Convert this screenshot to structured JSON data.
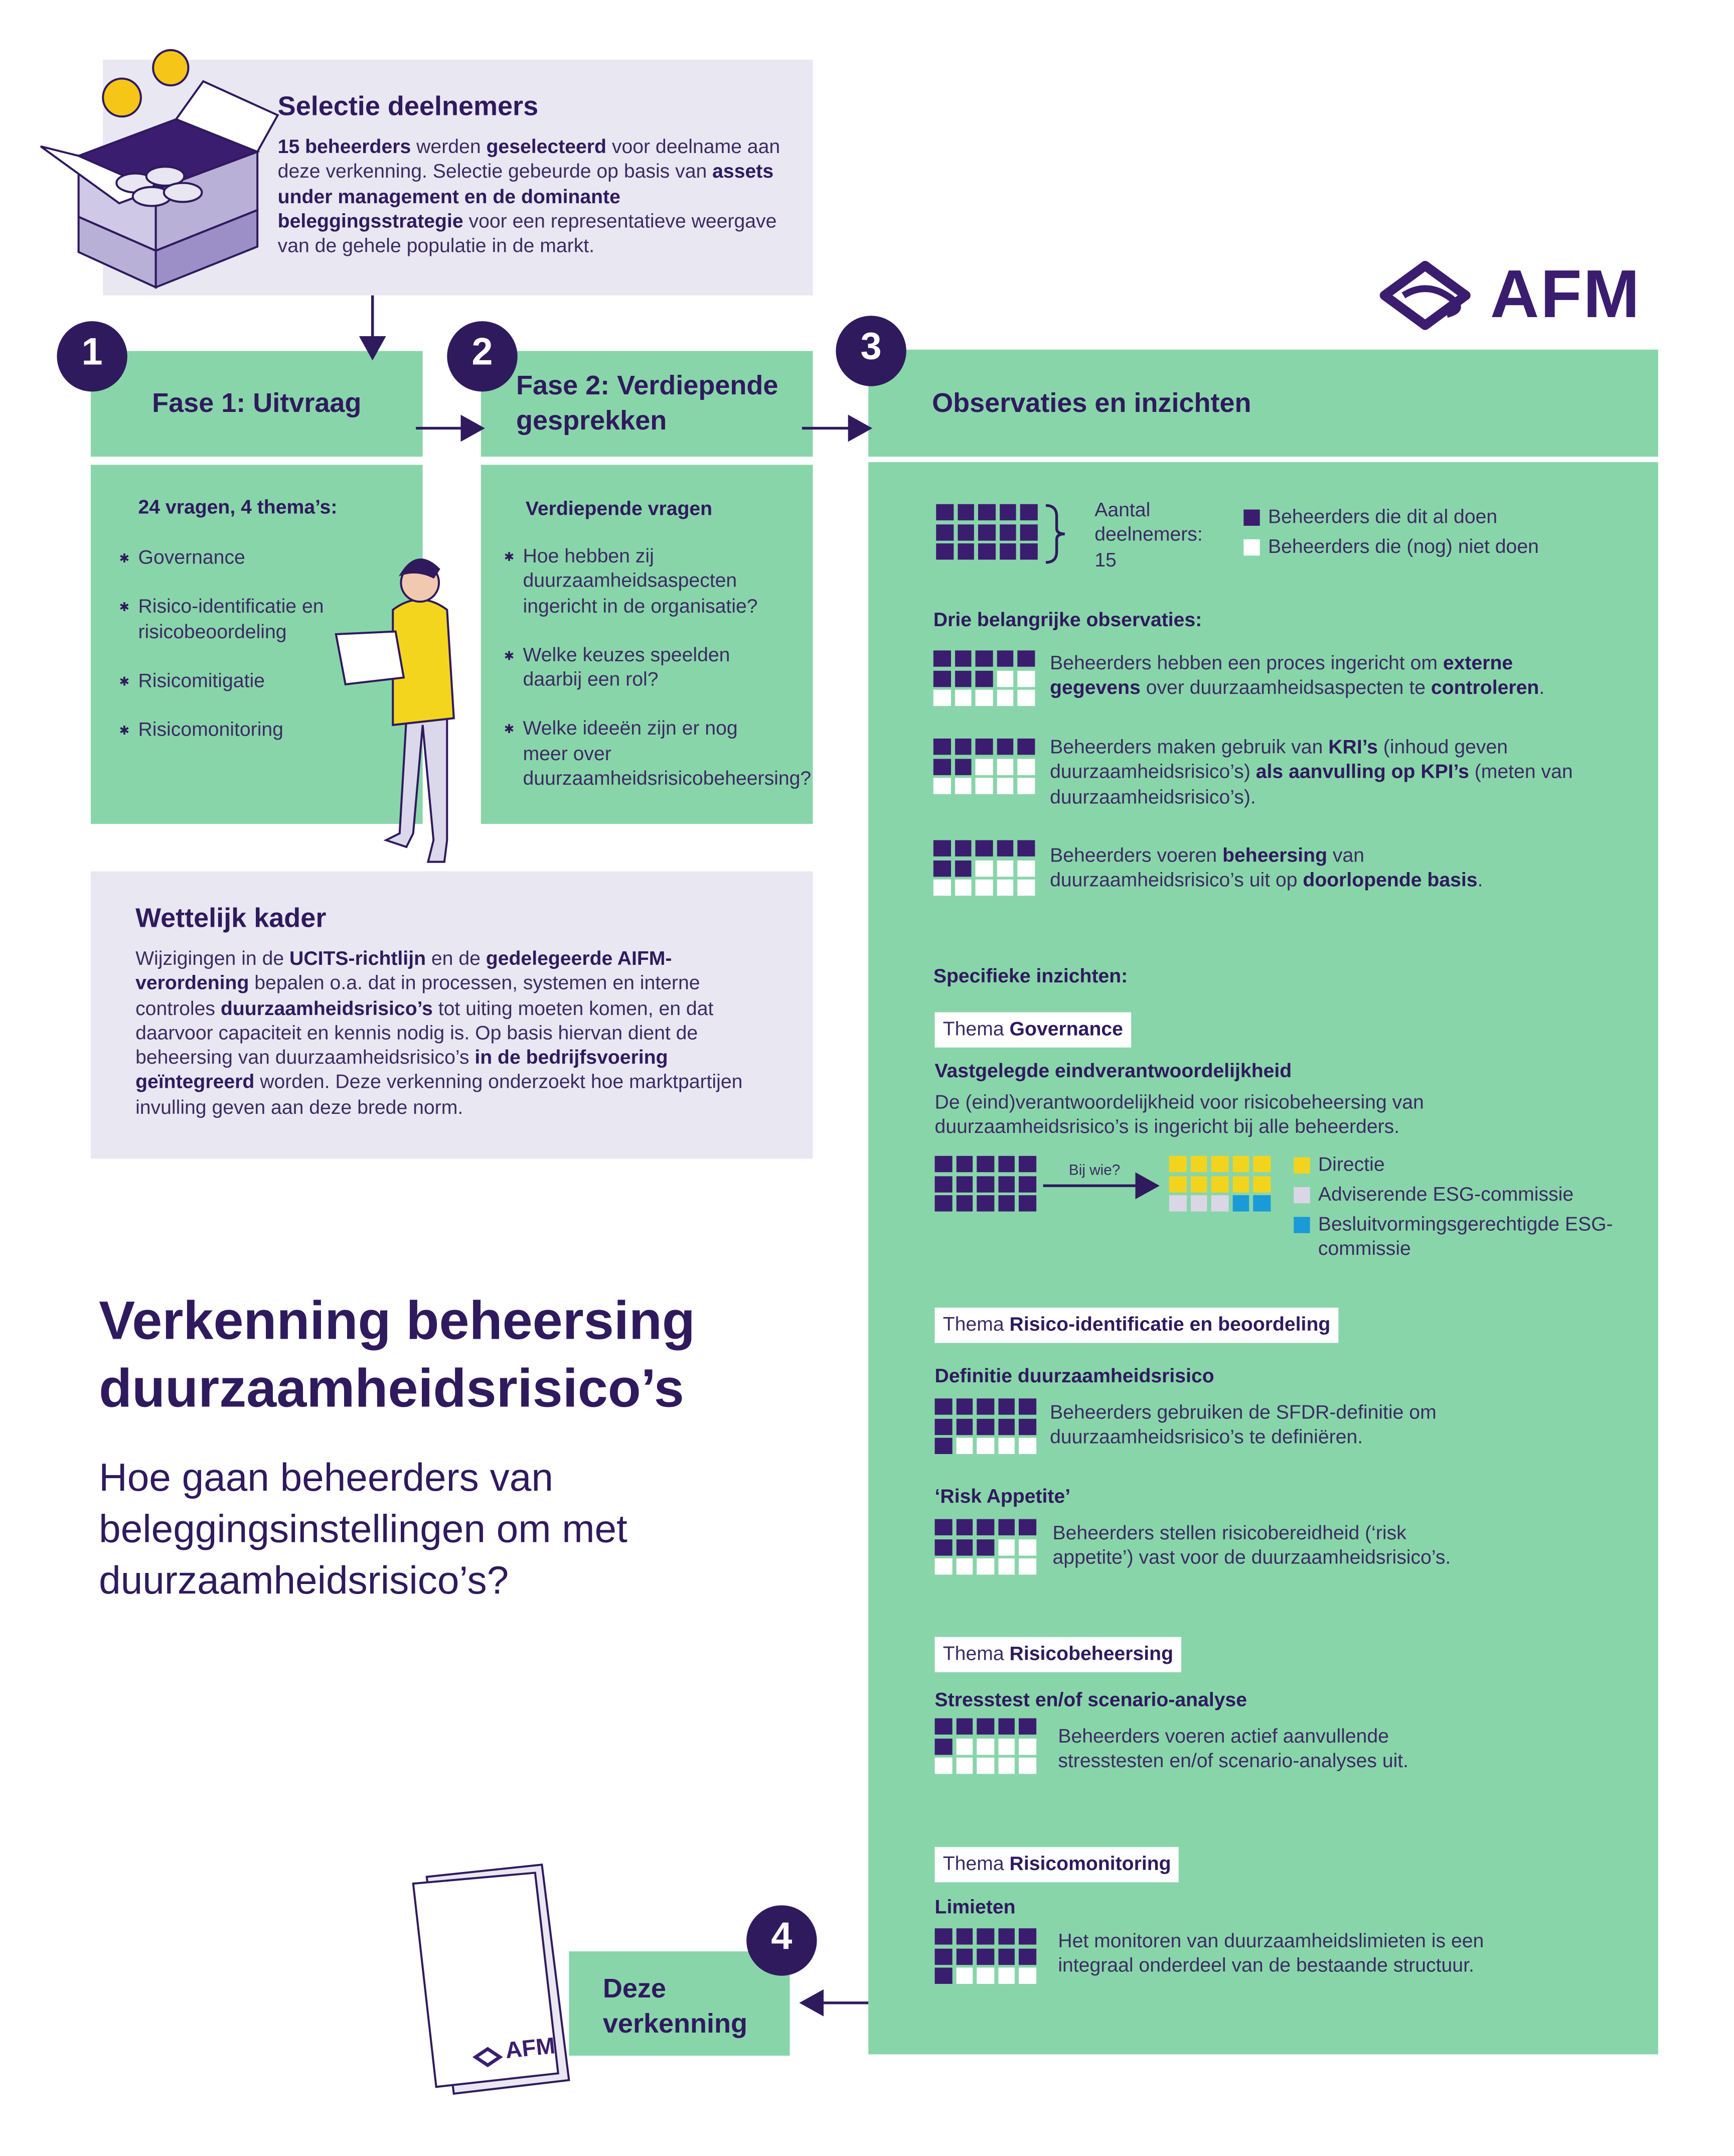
{
  "logo": "AFM",
  "selectie": {
    "title": "Selectie deelnemers",
    "body": [
      {
        "t": "15 beheerders",
        "b": true
      },
      {
        "t": " werden "
      },
      {
        "t": "geselecteerd",
        "b": true
      },
      {
        "t": " voor deelname aan deze verkenning. Selectie gebeurde op basis van "
      },
      {
        "t": "assets under management en de dominante beleggingsstrategie",
        "b": true
      },
      {
        "t": " voor een representatieve weergave van de gehele populatie in de markt."
      }
    ]
  },
  "steps": [
    "1",
    "2",
    "3",
    "4"
  ],
  "fase1": {
    "title": "Fase 1: Uitvraag",
    "intro": "24 vragen, 4 thema’s:",
    "items": [
      "Governance",
      "Risico-identificatie en risicobeoordeling",
      "Risicomitigatie",
      "Risicomonitoring"
    ]
  },
  "fase2": {
    "title": "Fase 2: Verdiepende gesprekken",
    "intro": "Verdiepende vragen",
    "items": [
      "Hoe hebben zij duurzaamheidsaspecten ingericht in de organisatie?",
      "Welke keuzes speelden daarbij een rol?",
      "Welke ideeën zijn er nog meer over duurzaamheidsrisicobeheersing?"
    ]
  },
  "wettelijk": {
    "title": "Wettelijk kader",
    "body": [
      {
        "t": "Wijzigingen in de "
      },
      {
        "t": "UCITS-richtlijn",
        "b": true
      },
      {
        "t": " en de "
      },
      {
        "t": "gedelegeerde AIFM-verordening",
        "b": true
      },
      {
        "t": " bepalen o.a. dat in processen, systemen en interne controles "
      },
      {
        "t": "duurzaamheidsrisico’s",
        "b": true
      },
      {
        "t": " tot uiting moeten komen, en dat daarvoor capaciteit en kennis nodig is. Op basis hiervan dient de beheersing van duurzaamheidsrisico’s "
      },
      {
        "t": "in de bedrijfsvoering geïntegreerd",
        "b": true
      },
      {
        "t": " worden. Deze verkenning onderzoekt hoe marktpartijen invulling geven aan deze brede norm."
      }
    ]
  },
  "title": "Verkenning beheersing duurzaamheidsrisico’s",
  "subtitle": "Hoe gaan beheerders van beleggingsinstellingen om met duurzaamheidsrisico’s?",
  "verkenning": "Deze verkenning",
  "observaties": {
    "title": "Observaties en inzichten",
    "aantal_label": "Aantal deelnemers:",
    "aantal": 15,
    "legend": [
      {
        "label": "Beheerders die dit al doen",
        "color": "#3a1d6e"
      },
      {
        "label": "Beheerders die (nog) niet doen",
        "color": "#ffffff"
      }
    ],
    "drie_label": "Drie belangrijke observaties:",
    "items": [
      {
        "count": 8,
        "text": [
          {
            "t": "Beheerders hebben een proces ingericht om "
          },
          {
            "t": "externe gegevens",
            "b": true
          },
          {
            "t": " over duurzaamheidsaspecten te "
          },
          {
            "t": "controleren",
            "b": true
          },
          {
            "t": "."
          }
        ]
      },
      {
        "count": 7,
        "text": [
          {
            "t": "Beheerders maken gebruik van "
          },
          {
            "t": "KRI’s",
            "b": true
          },
          {
            "t": " (inhoud geven duurzaamheidsrisico’s) "
          },
          {
            "t": "als aanvulling op KPI’s",
            "b": true
          },
          {
            "t": " (meten van duurzaamheidsrisico’s)."
          }
        ]
      },
      {
        "count": 7,
        "text": [
          {
            "t": "Beheerders voeren "
          },
          {
            "t": "beheersing",
            "b": true
          },
          {
            "t": " van duurzaamheidsrisico’s uit op "
          },
          {
            "t": "doorlopende basis",
            "b": true
          },
          {
            "t": "."
          }
        ]
      }
    ],
    "specifiek_label": "Specifieke inzichten:",
    "themes": [
      {
        "prefix": "Thema",
        "name": "Governance",
        "blocks": [
          {
            "title": "Vastgelegde eindverantwoordelijkheid",
            "text": "De (eind)verantwoordelijkheid voor risicobeheersing van duurzaamheidsrisico’s is ingericht bij alle beheerders.",
            "count": 15,
            "question": "Bij wie?",
            "breakdown": [
              {
                "label": "Directie",
                "color": "#f2d41e",
                "count": 10
              },
              {
                "label": "Adviserende ESG-commissie",
                "color": "#dad6e6",
                "count": 3
              },
              {
                "label": "Besluitvormingsgerechtigde ESG-commissie",
                "color": "#1b9ad8",
                "count": 2
              }
            ]
          }
        ]
      },
      {
        "prefix": "Thema",
        "name": "Risico-identificatie en beoordeling",
        "blocks": [
          {
            "title": "Definitie duurzaamheidsrisico",
            "count": 11,
            "text": "Beheerders gebruiken de SFDR-definitie om duurzaamheidsrisico’s te definiëren."
          },
          {
            "title": "‘Risk Appetite’",
            "count": 8,
            "text": "Beheerders stellen risicobereidheid (‘risk appetite’) vast voor de duurzaamheidsrisico’s."
          }
        ]
      },
      {
        "prefix": "Thema",
        "name": "Risicobeheersing",
        "blocks": [
          {
            "title": "Stresstest en/of scenario-analyse",
            "count": 6,
            "text": "Beheerders voeren actief aanvullende stresstesten en/of scenario-analyses uit."
          }
        ]
      },
      {
        "prefix": "Thema",
        "name": "Risicomonitoring",
        "blocks": [
          {
            "title": "Limieten",
            "count": 11,
            "text": "Het monitoren van duurzaamheidslimieten is een integraal onderdeel van de bestaande structuur."
          }
        ]
      }
    ]
  }
}
